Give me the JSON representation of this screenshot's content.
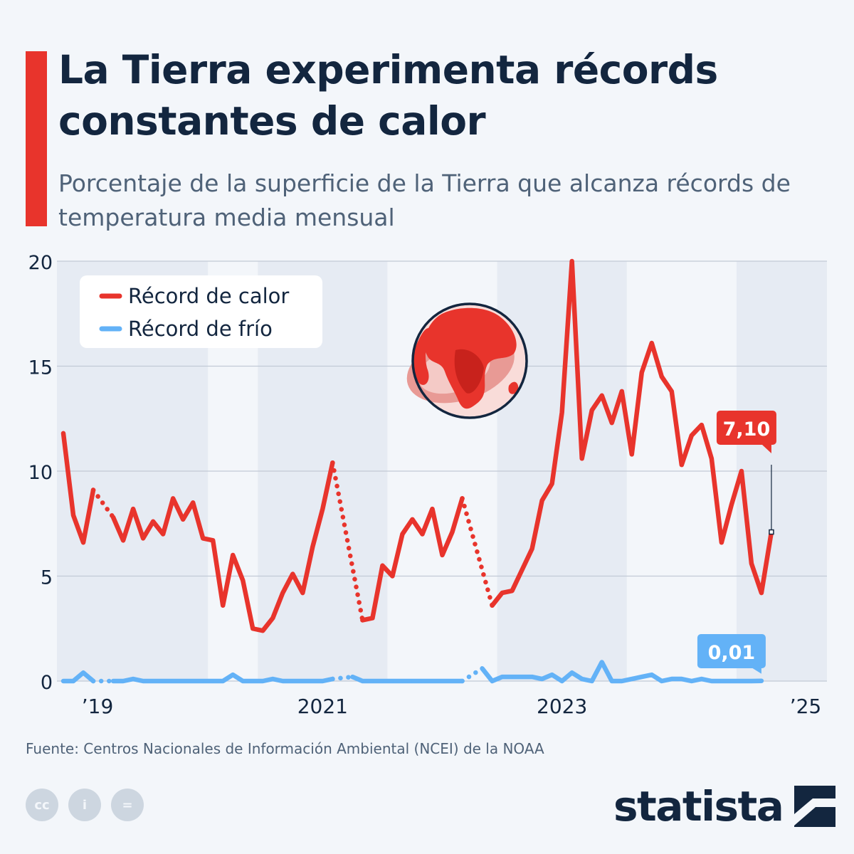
{
  "title": "La Tierra experimenta récords constantes de calor",
  "subtitle": "Porcentaje de la superficie de la Tierra que alcanza récords de temperatura media mensual",
  "source": "Fuente: Centros Nacionales de Información Ambiental (NCEI) de la NOAA",
  "brand": "statista",
  "license_icons": [
    "cc-icon",
    "attribution-icon",
    "no-derivatives-icon"
  ],
  "license_labels": [
    "cc",
    "i",
    "="
  ],
  "illustration_icon": "earth-globe-icon",
  "colors": {
    "heat": "#e8342c",
    "cold": "#63b2f7",
    "title": "#13263f",
    "band": "#e6ebf3",
    "background": "#f3f6fa"
  },
  "chart_data": {
    "type": "line",
    "x": [
      "2018-11",
      "2018-12",
      "2019-01",
      "2019-02",
      "2019-03",
      "2019-04",
      "2019-05",
      "2019-06",
      "2019-07",
      "2019-08",
      "2019-09",
      "2019-10",
      "2019-11",
      "2019-12",
      "2020-01",
      "2020-02",
      "2020-03",
      "2020-04",
      "2020-05",
      "2020-06",
      "2020-07",
      "2020-08",
      "2020-09",
      "2020-10",
      "2020-11",
      "2020-12",
      "2021-01",
      "2021-02",
      "2021-03",
      "2021-04",
      "2021-05",
      "2021-06",
      "2021-07",
      "2021-08",
      "2021-09",
      "2021-10",
      "2021-11",
      "2021-12",
      "2022-01",
      "2022-02",
      "2022-03",
      "2022-04",
      "2022-05",
      "2022-06",
      "2022-07",
      "2022-08",
      "2022-09",
      "2022-10",
      "2022-11",
      "2022-12",
      "2023-01",
      "2023-02",
      "2023-03",
      "2023-04",
      "2023-05",
      "2023-06",
      "2023-07",
      "2023-08",
      "2023-09",
      "2023-10",
      "2023-11",
      "2023-12",
      "2024-01",
      "2024-02",
      "2024-03",
      "2024-04",
      "2024-05",
      "2024-06",
      "2024-07",
      "2024-08",
      "2024-09",
      "2024-10",
      "2024-11",
      "2024-12",
      "2025-01",
      "2025-02",
      "2025-03"
    ],
    "series": [
      {
        "name": "Récord de calor",
        "values": [
          11.8,
          7.9,
          6.6,
          9.1,
          null,
          7.8,
          6.7,
          8.2,
          6.8,
          7.6,
          7.0,
          8.7,
          7.7,
          8.5,
          6.8,
          6.7,
          3.6,
          6.0,
          4.8,
          2.5,
          2.4,
          3.0,
          4.2,
          5.1,
          4.2,
          6.4,
          8.2,
          10.4,
          null,
          null,
          2.9,
          3.0,
          5.5,
          5.0,
          7.0,
          7.7,
          7.0,
          8.2,
          6.0,
          7.1,
          8.7,
          null,
          null,
          3.6,
          4.2,
          4.3,
          5.3,
          6.3,
          8.6,
          9.4,
          12.8,
          20.0,
          10.6,
          12.9,
          13.6,
          12.3,
          13.8,
          10.8,
          14.7,
          16.1,
          14.5,
          13.8,
          10.3,
          11.7,
          12.2,
          10.6,
          6.6,
          8.4,
          10.0,
          5.6,
          4.2,
          7.1,
          null,
          null,
          null,
          null,
          null
        ],
        "gaps_dotted": true
      },
      {
        "name": "Récord de frío",
        "values": [
          0.0,
          0.0,
          0.4,
          0.0,
          null,
          0.0,
          0.0,
          0.1,
          0.0,
          0.0,
          0.0,
          0.0,
          0.0,
          0.0,
          0.0,
          0.0,
          0.0,
          0.3,
          0.0,
          0.0,
          0.0,
          0.1,
          0.0,
          0.0,
          0.0,
          0.0,
          0.0,
          0.1,
          null,
          0.2,
          0.0,
          0.0,
          0.0,
          0.0,
          0.0,
          0.0,
          0.0,
          0.0,
          0.0,
          0.0,
          0.0,
          null,
          0.6,
          0.0,
          0.2,
          0.2,
          0.2,
          0.2,
          0.1,
          0.3,
          0.0,
          0.4,
          0.1,
          0.0,
          0.9,
          0.0,
          0.0,
          0.1,
          0.2,
          0.3,
          0.0,
          0.1,
          0.1,
          0.0,
          0.1,
          0.0,
          0.0,
          0.0,
          0.0,
          0.0,
          0.01,
          null,
          null,
          null,
          null,
          null,
          null
        ],
        "gaps_dotted": true
      }
    ],
    "x_tick_labels": [
      "’19",
      "2021",
      "2023",
      "’25"
    ],
    "y_ticks": [
      0,
      5,
      10,
      15,
      20
    ],
    "ylim": [
      0,
      20
    ],
    "grid": true,
    "legend": {
      "position": "top-left",
      "entries": [
        "Récord de calor",
        "Récord de frío"
      ]
    },
    "annotations": [
      {
        "series": "Récord de calor",
        "label": "7,10"
      },
      {
        "series": "Récord de frío",
        "label": "0,01"
      }
    ]
  }
}
